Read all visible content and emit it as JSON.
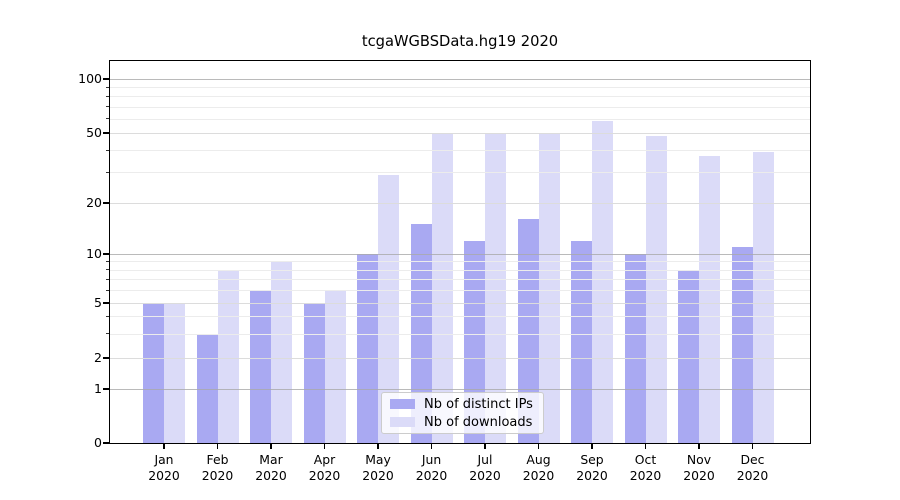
{
  "chart_data": {
    "type": "bar",
    "title": "tcgaWGBSData.hg19 2020",
    "categories": [
      "Jan",
      "Feb",
      "Mar",
      "Apr",
      "May",
      "Jun",
      "Jul",
      "Aug",
      "Sep",
      "Oct",
      "Nov",
      "Dec"
    ],
    "x_year": "2020",
    "series": [
      {
        "name": "Nb of distinct IPs",
        "color": "#a9a9f2",
        "values": [
          5,
          3,
          6,
          5,
          10,
          15,
          12,
          16,
          12,
          10,
          8,
          11
        ]
      },
      {
        "name": "Nb of downloads",
        "color": "#dbdbf8",
        "values": [
          5,
          8,
          9,
          6,
          29,
          50,
          50,
          50,
          58,
          48,
          37,
          39
        ]
      }
    ],
    "yscale": "log-like (0,1,2,5,10,20,50,100)",
    "ylim": [
      0,
      130
    ],
    "xlabel": "",
    "ylabel": "",
    "grid": "on",
    "legend_position": "lower center",
    "y_ticks": [
      {
        "v": 0,
        "label": "0"
      },
      {
        "v": 1,
        "label": "1"
      },
      {
        "v": 2,
        "label": "2"
      },
      {
        "v": 5,
        "label": "5"
      },
      {
        "v": 10,
        "label": "10"
      },
      {
        "v": 20,
        "label": "20"
      },
      {
        "v": 50,
        "label": "50"
      },
      {
        "v": 100,
        "label": "100"
      }
    ],
    "y_gridlines": {
      "major": [
        1,
        10,
        100
      ],
      "labeled": [
        2,
        5,
        20,
        50
      ],
      "minor": [
        3,
        4,
        6,
        7,
        8,
        9,
        30,
        40,
        60,
        70,
        80,
        90
      ]
    },
    "colors": {
      "grid_major": "#a9a9a9",
      "grid_minor": "#ececec",
      "axis": "#000000",
      "legend_border": "#cccccc"
    }
  }
}
